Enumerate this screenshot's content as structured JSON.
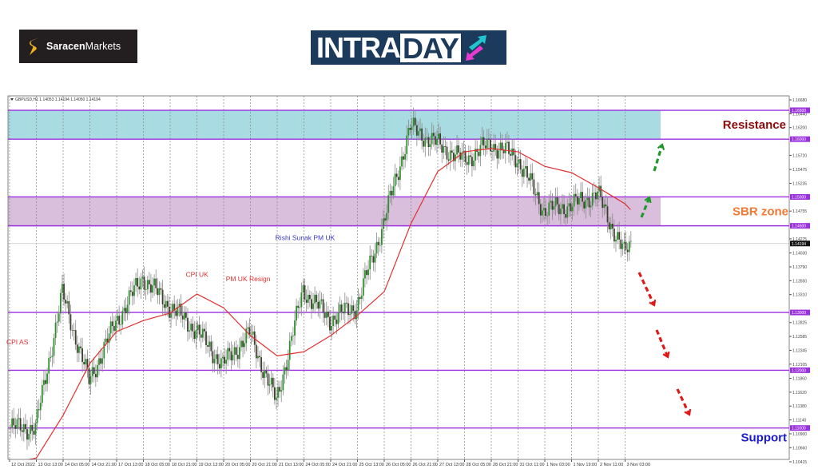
{
  "header": {
    "broker_logo": {
      "bold": "Saracen",
      "light": "Markets"
    },
    "intraday_logo": {
      "part1": "INTRA",
      "part2": "DAY"
    }
  },
  "chart_data": {
    "type": "candlestick",
    "symbol_line": "GBPUSD,H1  1.14053 1.14194 1.14050 1.14194",
    "x_tick_labels": [
      "12 Oct 2022",
      "13 Oct 13:00",
      "14 Oct 05:00",
      "14 Oct 21:00",
      "17 Oct 13:00",
      "18 Oct 05:00",
      "18 Oct 21:00",
      "19 Oct 13:00",
      "20 Oct 05:00",
      "20 Oct 21:00",
      "21 Oct 13:00",
      "24 Oct 05:00",
      "24 Oct 21:00",
      "25 Oct 13:00",
      "26 Oct 05:00",
      "26 Oct 21:00",
      "27 Oct 13:00",
      "28 Oct 05:00",
      "28 Oct 21:00",
      "31 Oct 11:00",
      "1 Nov 03:00",
      "1 Nov 19:00",
      "2 Nov 11:00",
      "3 Nov 03:00"
    ],
    "close_at_ticks": [
      1.1101,
      1.11,
      1.1333,
      1.1181,
      1.1283,
      1.1361,
      1.1311,
      1.127,
      1.1209,
      1.1264,
      1.1145,
      1.1339,
      1.1288,
      1.1311,
      1.1454,
      1.162,
      1.1592,
      1.1564,
      1.1592,
      1.1568,
      1.1477,
      1.1485,
      1.1505,
      1.1402
    ],
    "last_close": 1.14194,
    "moving_average": [
      1.1039,
      1.1048,
      1.1122,
      1.1212,
      1.1267,
      1.1286,
      1.1299,
      1.1332,
      1.1308,
      1.126,
      1.1225,
      1.1232,
      1.126,
      1.1295,
      1.1336,
      1.1454,
      1.1544,
      1.1578,
      1.1584,
      1.1578,
      1.1553,
      1.1542,
      1.1516,
      1.1488
    ],
    "y_tick_labels": [
      "1.16680",
      "1.16440",
      "1.16200",
      "1.15720",
      "1.15475",
      "1.15235",
      "1.14755",
      "1.14275",
      "1.14030",
      "1.13790",
      "1.13550",
      "1.13310",
      "1.12825",
      "1.12585",
      "1.12345",
      "1.12105",
      "1.11860",
      "1.11620",
      "1.11380",
      "1.11140",
      "1.10900",
      "1.10660",
      "1.10415"
    ],
    "ylim": [
      1.10415,
      1.1668
    ],
    "levels": [
      {
        "price": 1.165,
        "label": "1.16500"
      },
      {
        "price": 1.16,
        "label": "1.16000"
      },
      {
        "price": 1.15,
        "label": "1.15000"
      },
      {
        "price": 1.145,
        "label": "1.14500"
      },
      {
        "price": 1.13,
        "label": "1.13000"
      },
      {
        "price": 1.12,
        "label": "1.12000"
      },
      {
        "price": 1.11,
        "label": "1.11000"
      }
    ],
    "current_price_label": "1.14194",
    "zones": [
      {
        "name": "Resistance",
        "from": 1.16,
        "to": 1.165,
        "fill": "#a9dbe2",
        "text_color": "#8b0a0a"
      },
      {
        "name": "SBR zone",
        "from": 1.145,
        "to": 1.15,
        "fill": "#d9bfdc",
        "text_color": "#f07a35"
      }
    ],
    "support_label": {
      "text": "Support",
      "price": 1.11,
      "color": "#1a1ad6"
    },
    "annotations": [
      {
        "text": "CPI AS",
        "tick": 0,
        "price": 1.1245,
        "color": "#e03030"
      },
      {
        "text": "CPI UK",
        "tick": 6.7,
        "price": 1.1362,
        "color": "#e03030"
      },
      {
        "text": "PM UK Resign",
        "tick": 8.2,
        "price": 1.1354,
        "color": "#e03030"
      },
      {
        "text": "Rishi Sunak PM UK",
        "tick": 10.05,
        "price": 1.1425,
        "color": "#3a3acc"
      }
    ],
    "colors": {
      "level": "#9b30e0",
      "ma": "#e03030",
      "bull": "#2f8f2f",
      "bear": "#3f3f30",
      "wick": "#8a8a8a",
      "up_arrow": "#1f9a2a",
      "down_arrow": "#e01818"
    }
  }
}
